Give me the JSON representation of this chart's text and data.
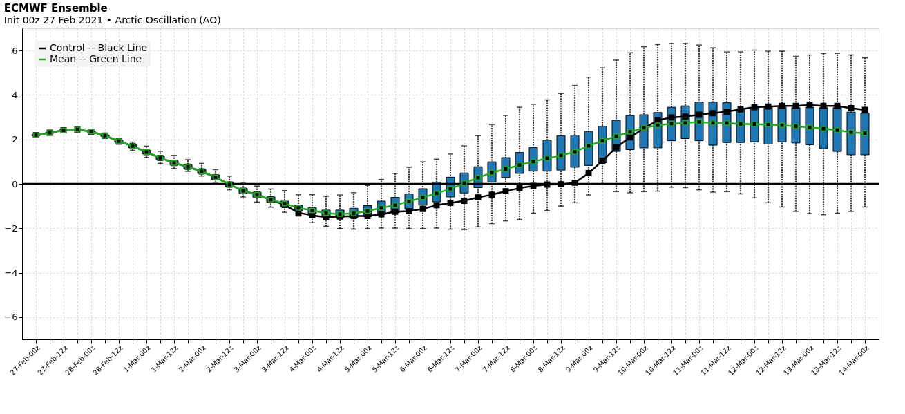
{
  "chart_data": {
    "type": "box",
    "title": "ECMWF Ensemble",
    "subtitle": "Init 00z 27 Feb 2021 • Arctic Oscillation (AO)",
    "categories": [
      "27-Feb-00z",
      null,
      "27-Feb-12z",
      null,
      "28-Feb-00z",
      null,
      "28-Feb-12z",
      null,
      "1-Mar-00z",
      null,
      "1-Mar-12z",
      null,
      "2-Mar-00z",
      null,
      "2-Mar-12z",
      null,
      "3-Mar-00z",
      null,
      "3-Mar-12z",
      null,
      "4-Mar-00z",
      null,
      "4-Mar-12z",
      null,
      "5-Mar-00z",
      null,
      "5-Mar-12z",
      null,
      "6-Mar-00z",
      null,
      "6-Mar-12z",
      null,
      "7-Mar-00z",
      null,
      "7-Mar-12z",
      null,
      "8-Mar-00z",
      null,
      "8-Mar-12z",
      null,
      "9-Mar-00z",
      null,
      "9-Mar-12z",
      null,
      "10-Mar-00z",
      null,
      "10-Mar-12z",
      null,
      "11-Mar-00z",
      null,
      "11-Mar-12z",
      null,
      "12-Mar-00z",
      null,
      "12-Mar-12z",
      null,
      "13-Mar-00z",
      null,
      "13-Mar-12z",
      null,
      "14-Mar-00z"
    ],
    "color": "#2077b4",
    "boxes": [
      {
        "low": 2.14,
        "q1": 2.17,
        "q3": 2.21,
        "high": 2.24
      },
      {
        "low": 2.25,
        "q1": 2.28,
        "q3": 2.32,
        "high": 2.35
      },
      {
        "low": 2.36,
        "q1": 2.39,
        "q3": 2.43,
        "high": 2.46
      },
      {
        "low": 2.4,
        "q1": 2.43,
        "q3": 2.47,
        "high": 2.5
      },
      {
        "low": 2.3,
        "q1": 2.33,
        "q3": 2.37,
        "high": 2.4
      },
      {
        "low": 2.1,
        "q1": 2.14,
        "q3": 2.2,
        "high": 2.24
      },
      {
        "low": 1.78,
        "q1": 1.87,
        "q3": 1.97,
        "high": 2.05
      },
      {
        "low": 1.51,
        "q1": 1.63,
        "q3": 1.77,
        "high": 1.88
      },
      {
        "low": 1.19,
        "q1": 1.35,
        "q3": 1.51,
        "high": 1.7
      },
      {
        "low": 0.92,
        "q1": 1.08,
        "q3": 1.26,
        "high": 1.46
      },
      {
        "low": 0.69,
        "q1": 0.85,
        "q3": 1.03,
        "high": 1.28
      },
      {
        "low": 0.56,
        "q1": 0.68,
        "q3": 0.86,
        "high": 1.09
      },
      {
        "low": 0.35,
        "q1": 0.47,
        "q3": 0.65,
        "high": 0.92
      },
      {
        "low": 0.07,
        "q1": 0.2,
        "q3": 0.4,
        "high": 0.64
      },
      {
        "low": -0.27,
        "q1": -0.13,
        "q3": 0.07,
        "high": 0.35
      },
      {
        "low": -0.59,
        "q1": -0.42,
        "q3": -0.2,
        "high": 0.03
      },
      {
        "low": -0.82,
        "q1": -0.6,
        "q3": -0.38,
        "high": -0.1
      },
      {
        "low": -1.05,
        "q1": -0.83,
        "q3": -0.59,
        "high": -0.23
      },
      {
        "low": -1.28,
        "q1": -1.02,
        "q3": -0.78,
        "high": -0.3
      },
      {
        "low": -1.45,
        "q1": -1.22,
        "q3": -0.98,
        "high": -0.49
      },
      {
        "low": -1.75,
        "q1": -1.33,
        "q3": -1.08,
        "high": -0.49
      },
      {
        "low": -1.91,
        "q1": -1.47,
        "q3": -1.18,
        "high": -0.56
      },
      {
        "low": -2.01,
        "q1": -1.52,
        "q3": -1.18,
        "high": -0.5
      },
      {
        "low": -2.04,
        "q1": -1.52,
        "q3": -1.1,
        "high": -0.4
      },
      {
        "low": -2.01,
        "q1": -1.47,
        "q3": -0.98,
        "high": -0.07
      },
      {
        "low": -1.99,
        "q1": -1.38,
        "q3": -0.78,
        "high": 0.2
      },
      {
        "low": -1.99,
        "q1": -1.3,
        "q3": -0.61,
        "high": 0.47
      },
      {
        "low": -2.01,
        "q1": -1.15,
        "q3": -0.45,
        "high": 0.75
      },
      {
        "low": -2.01,
        "q1": -0.96,
        "q3": -0.22,
        "high": 0.99
      },
      {
        "low": -1.99,
        "q1": -0.81,
        "q3": 0.08,
        "high": 1.11
      },
      {
        "low": -2.04,
        "q1": -0.59,
        "q3": 0.3,
        "high": 1.34
      },
      {
        "low": -2.06,
        "q1": -0.41,
        "q3": 0.49,
        "high": 1.71
      },
      {
        "low": -1.94,
        "q1": -0.17,
        "q3": 0.77,
        "high": 2.17
      },
      {
        "low": -1.79,
        "q1": 0.08,
        "q3": 0.99,
        "high": 2.67
      },
      {
        "low": -1.67,
        "q1": 0.28,
        "q3": 1.18,
        "high": 3.08
      },
      {
        "low": -1.6,
        "q1": 0.47,
        "q3": 1.41,
        "high": 3.45
      },
      {
        "low": -1.32,
        "q1": 0.57,
        "q3": 1.64,
        "high": 3.58
      },
      {
        "low": -1.2,
        "q1": 0.57,
        "q3": 1.97,
        "high": 3.78
      },
      {
        "low": -1.0,
        "q1": 0.62,
        "q3": 2.17,
        "high": 4.07
      },
      {
        "low": -0.85,
        "q1": 0.75,
        "q3": 2.19,
        "high": 4.43
      },
      {
        "low": -0.5,
        "q1": 0.83,
        "q3": 2.36,
        "high": 4.8
      },
      {
        "low": 0.0,
        "q1": 0.95,
        "q3": 2.59,
        "high": 5.22
      },
      {
        "low": -0.35,
        "q1": 1.46,
        "q3": 2.86,
        "high": 5.57
      },
      {
        "low": -0.4,
        "q1": 1.54,
        "q3": 3.08,
        "high": 5.9
      },
      {
        "low": -0.35,
        "q1": 1.62,
        "q3": 3.11,
        "high": 6.17
      },
      {
        "low": -0.33,
        "q1": 1.62,
        "q3": 3.21,
        "high": 6.27
      },
      {
        "low": -0.15,
        "q1": 1.94,
        "q3": 3.45,
        "high": 6.32
      },
      {
        "low": -0.17,
        "q1": 2.04,
        "q3": 3.51,
        "high": 6.32
      },
      {
        "low": -0.27,
        "q1": 1.94,
        "q3": 3.68,
        "high": 6.25
      },
      {
        "low": -0.37,
        "q1": 1.74,
        "q3": 3.68,
        "high": 6.12
      },
      {
        "low": -0.35,
        "q1": 1.86,
        "q3": 3.65,
        "high": 5.94
      },
      {
        "low": -0.45,
        "q1": 1.86,
        "q3": 3.38,
        "high": 5.94
      },
      {
        "low": -0.63,
        "q1": 1.89,
        "q3": 3.43,
        "high": 6.02
      },
      {
        "low": -0.85,
        "q1": 1.79,
        "q3": 3.43,
        "high": 5.97
      },
      {
        "low": -1.04,
        "q1": 1.89,
        "q3": 3.45,
        "high": 5.97
      },
      {
        "low": -1.24,
        "q1": 1.84,
        "q3": 3.43,
        "high": 5.74
      },
      {
        "low": -1.34,
        "q1": 1.76,
        "q3": 3.45,
        "high": 5.8
      },
      {
        "low": -1.39,
        "q1": 1.59,
        "q3": 3.43,
        "high": 5.87
      },
      {
        "low": -1.32,
        "q1": 1.46,
        "q3": 3.43,
        "high": 5.87
      },
      {
        "low": -1.24,
        "q1": 1.31,
        "q3": 3.23,
        "high": 5.8
      },
      {
        "low": -1.04,
        "q1": 1.31,
        "q3": 3.18,
        "high": 5.67
      }
    ],
    "series": [
      {
        "name": "Control -- Black Line",
        "type": "line",
        "color": "#000000",
        "values": [
          2.19,
          2.3,
          2.41,
          2.45,
          2.35,
          2.17,
          1.92,
          1.7,
          1.43,
          1.17,
          0.94,
          0.77,
          0.56,
          0.3,
          -0.03,
          -0.31,
          -0.49,
          -0.71,
          -0.95,
          -1.3,
          -1.42,
          -1.5,
          -1.47,
          -1.45,
          -1.45,
          -1.37,
          -1.25,
          -1.23,
          -1.13,
          -0.96,
          -0.86,
          -0.76,
          -0.61,
          -0.49,
          -0.33,
          -0.19,
          -0.09,
          -0.03,
          -0.02,
          0.05,
          0.48,
          1.04,
          1.64,
          2.09,
          2.5,
          2.86,
          2.99,
          3.03,
          3.11,
          3.18,
          3.25,
          3.35,
          3.45,
          3.48,
          3.51,
          3.51,
          3.55,
          3.51,
          3.51,
          3.41,
          3.33
        ]
      },
      {
        "name": "Mean -- Green Line",
        "type": "line",
        "color": "#22aa22",
        "values": [
          2.19,
          2.3,
          2.41,
          2.45,
          2.35,
          2.17,
          1.92,
          1.7,
          1.43,
          1.17,
          0.94,
          0.77,
          0.56,
          0.3,
          -0.03,
          -0.31,
          -0.49,
          -0.71,
          -0.89,
          -1.08,
          -1.2,
          -1.32,
          -1.36,
          -1.33,
          -1.22,
          -1.08,
          -0.96,
          -0.79,
          -0.61,
          -0.43,
          -0.22,
          0.03,
          0.28,
          0.5,
          0.67,
          0.85,
          1.0,
          1.15,
          1.28,
          1.44,
          1.71,
          1.94,
          2.14,
          2.34,
          2.52,
          2.64,
          2.71,
          2.74,
          2.79,
          2.74,
          2.74,
          2.69,
          2.69,
          2.66,
          2.64,
          2.59,
          2.54,
          2.48,
          2.42,
          2.32,
          2.28
        ]
      }
    ],
    "ylim": [
      -7,
      7
    ],
    "yticks": [
      -6,
      -4,
      -2,
      0,
      2,
      4,
      6
    ],
    "ref_lines": [
      {
        "axis": "y",
        "value": 0,
        "color": "#000000"
      }
    ],
    "grid": true,
    "legend": "top left",
    "marker": "square",
    "line_style": "solid"
  }
}
